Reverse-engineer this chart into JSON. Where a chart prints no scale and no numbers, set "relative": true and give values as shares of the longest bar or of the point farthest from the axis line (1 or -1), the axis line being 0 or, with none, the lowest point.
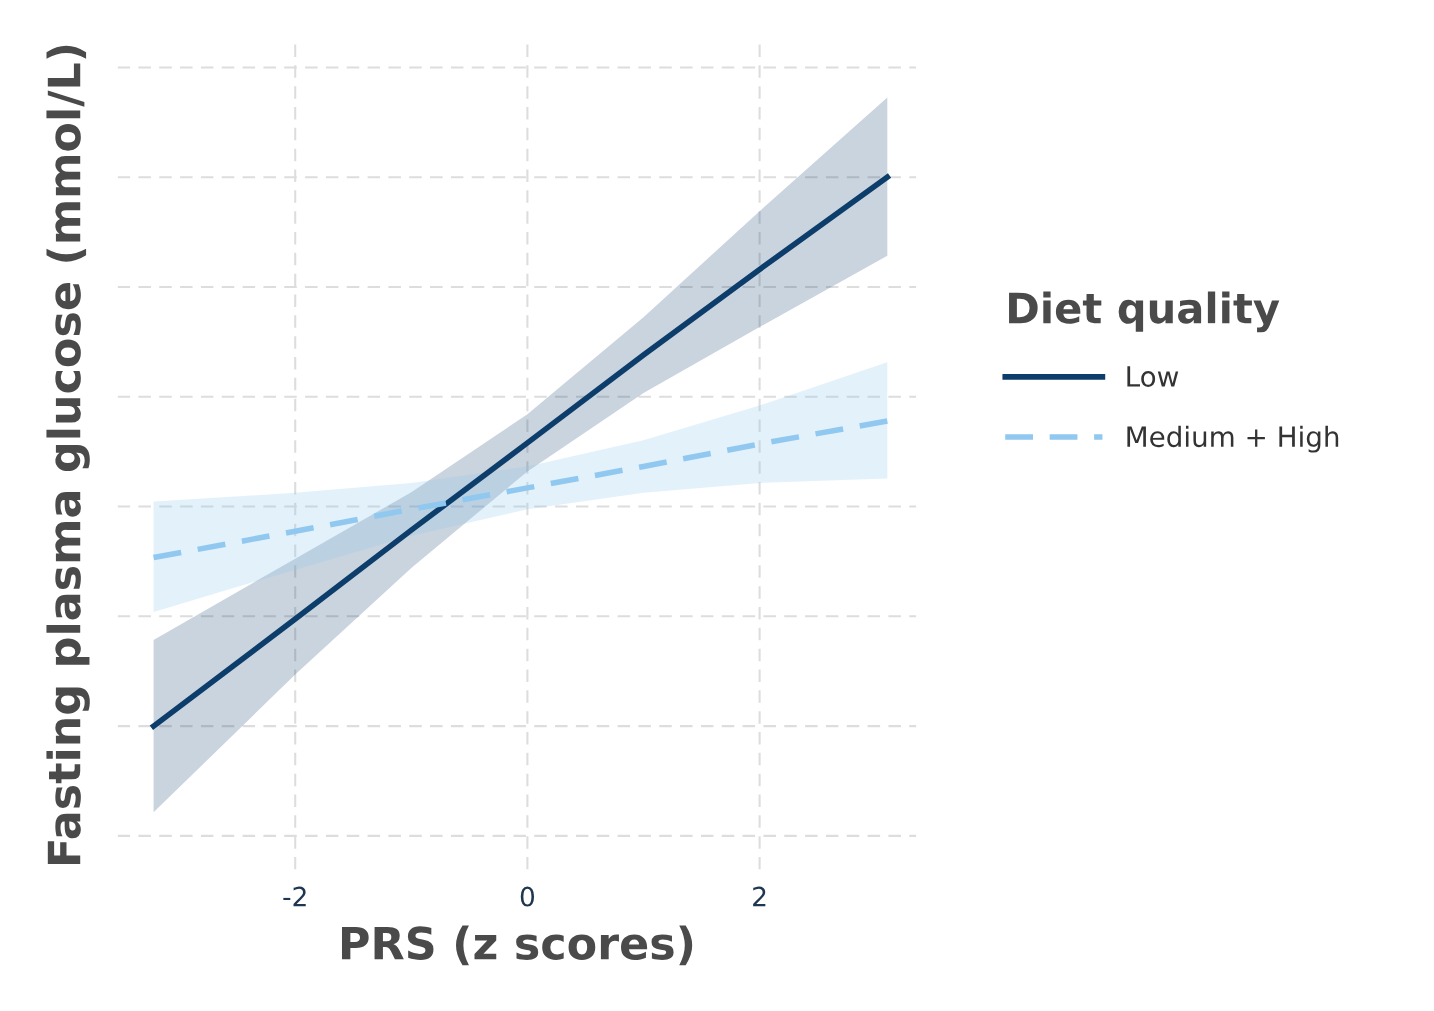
{
  "chart_data": {
    "type": "line",
    "relative": true,
    "xlabel": "PRS (z scores)",
    "ylabel": "Fasting plasma glucose (mmol/L)",
    "legend_title": "Diet quality",
    "xlim": [
      -3.53,
      3.35
    ],
    "xticks": [
      {
        "value": -2,
        "label": "-2"
      },
      0,
      2
    ],
    "grid": true,
    "legend": "right",
    "tick_labels": "x",
    "series": [
      {
        "name": "Low",
        "color": "#0d3d6b",
        "line_style": "solid",
        "x": [
          -3.22,
          -2,
          -1,
          0,
          1,
          2,
          3.1
        ],
        "values": [
          0.0,
          0.195,
          0.357,
          0.516,
          0.676,
          0.832,
          1.0
        ],
        "lower": [
          -0.157,
          0.094,
          0.288,
          0.464,
          0.607,
          0.727,
          0.857
        ],
        "upper": [
          0.157,
          0.305,
          0.426,
          0.568,
          0.745,
          0.938,
          1.145
        ]
      },
      {
        "name": "Medium + High",
        "color": "#90c8f0",
        "line_style": "dashed",
        "x": [
          -3.22,
          -2,
          -1,
          0,
          1,
          2,
          3.1
        ],
        "values": [
          0.307,
          0.355,
          0.395,
          0.434,
          0.473,
          0.514,
          0.556
        ],
        "lower": [
          0.208,
          0.285,
          0.347,
          0.395,
          0.425,
          0.443,
          0.451
        ],
        "upper": [
          0.409,
          0.425,
          0.443,
          0.473,
          0.521,
          0.584,
          0.663
        ]
      }
    ]
  }
}
